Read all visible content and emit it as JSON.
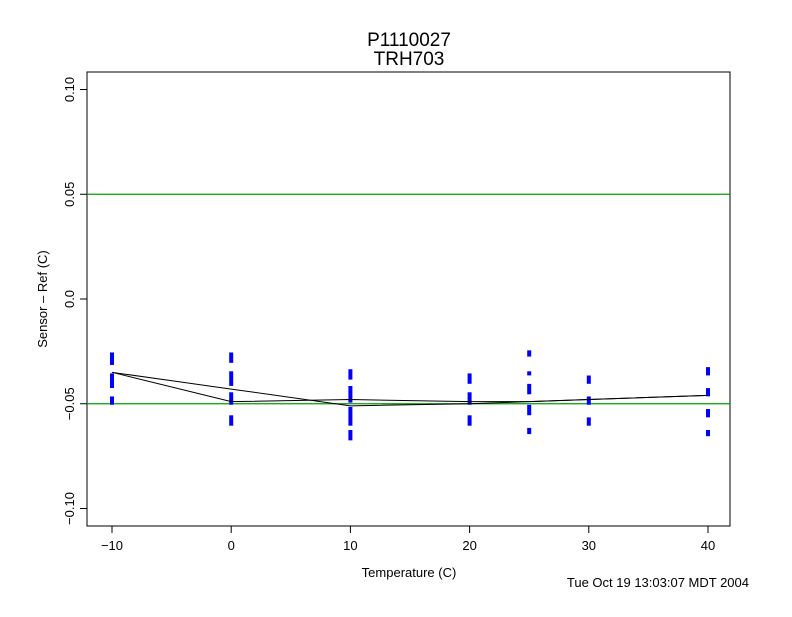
{
  "chart_data": {
    "type": "scatter",
    "title": "P1110027",
    "subtitle": "TRH703",
    "xlabel": "Temperature (C)",
    "ylabel": "Sensor – Ref (C)",
    "xlim": [
      -12,
      42
    ],
    "ylim": [
      -0.107,
      0.11
    ],
    "xticks": [
      -10,
      0,
      10,
      20,
      30,
      40
    ],
    "xtick_labels": [
      "−10",
      "0",
      "10",
      "20",
      "30",
      "40"
    ],
    "yticks": [
      -0.1,
      -0.05,
      0.0,
      0.05,
      0.1
    ],
    "ytick_labels": [
      "−0.10",
      "−0.05",
      "0.0",
      "0.05",
      "0.10"
    ],
    "grid": false,
    "reference_lines": [
      {
        "y": 0.05,
        "color": "#00a000"
      },
      {
        "y": -0.05,
        "color": "#00a000"
      }
    ],
    "point_clusters": [
      {
        "x": -10,
        "ranges": [
          [
            -0.026,
            -0.031
          ],
          [
            -0.036,
            -0.042
          ],
          [
            -0.047,
            -0.05
          ]
        ]
      },
      {
        "x": 0,
        "ranges": [
          [
            -0.026,
            -0.03
          ],
          [
            -0.035,
            -0.041
          ],
          [
            -0.045,
            -0.05
          ],
          [
            -0.056,
            -0.06
          ]
        ]
      },
      {
        "x": 10,
        "ranges": [
          [
            -0.034,
            -0.038
          ],
          [
            -0.042,
            -0.049
          ],
          [
            -0.052,
            -0.06
          ],
          [
            -0.063,
            -0.067
          ]
        ]
      },
      {
        "x": 20,
        "ranges": [
          [
            -0.036,
            -0.04
          ],
          [
            -0.045,
            -0.05
          ],
          [
            -0.056,
            -0.06
          ]
        ]
      },
      {
        "x": 25,
        "ranges": [
          [
            -0.025,
            -0.027
          ],
          [
            -0.035,
            -0.036
          ],
          [
            -0.041,
            -0.045
          ],
          [
            -0.051,
            -0.055
          ],
          [
            -0.062,
            -0.064
          ]
        ]
      },
      {
        "x": 30,
        "ranges": [
          [
            -0.037,
            -0.04
          ],
          [
            -0.047,
            -0.05
          ],
          [
            -0.057,
            -0.06
          ]
        ]
      },
      {
        "x": 40,
        "ranges": [
          [
            -0.033,
            -0.036
          ],
          [
            -0.043,
            -0.046
          ],
          [
            -0.053,
            -0.056
          ],
          [
            -0.063,
            -0.065
          ]
        ]
      }
    ],
    "series": [
      {
        "name": "line-1",
        "x": [
          -10,
          0,
          10,
          20,
          25,
          30,
          40
        ],
        "y": [
          -0.035,
          -0.049,
          -0.048,
          -0.049,
          -0.049,
          -0.048,
          -0.046
        ]
      },
      {
        "name": "line-2",
        "x": [
          -10,
          0,
          10,
          20,
          25,
          30,
          40
        ],
        "y": [
          -0.035,
          -0.043,
          -0.051,
          -0.05,
          -0.049,
          -0.048,
          -0.046
        ]
      }
    ],
    "colors": {
      "points": "#0000ff",
      "lines": "#000000",
      "limits": "#00a000"
    }
  },
  "footer": {
    "timestamp": "Tue Oct 19 13:03:07 MDT 2004"
  }
}
